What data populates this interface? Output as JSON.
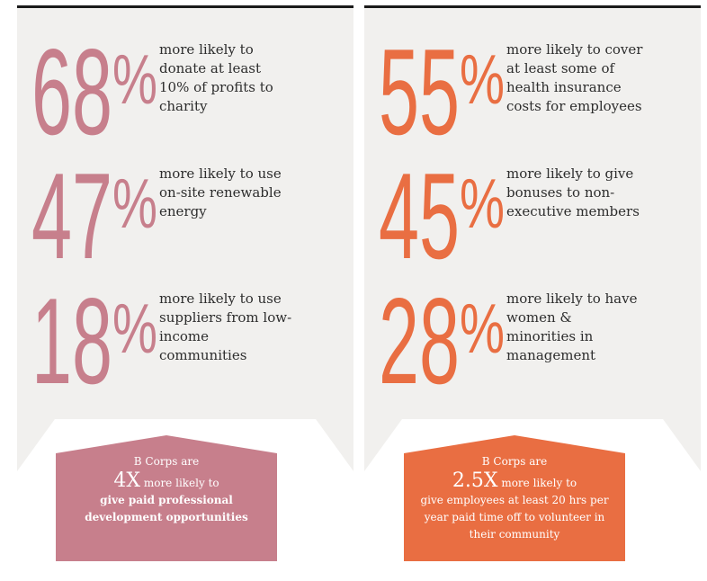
{
  "colors": {
    "left_accent": "#c77f8c",
    "right_accent": "#e96e42",
    "panel_bg": "#f1f0ee",
    "text": "#2d2d2d"
  },
  "left": {
    "stats": [
      {
        "number": "68",
        "percent": "%",
        "line1": "more likely to",
        "line2": "donate at least",
        "line3": "10% of profits to",
        "line4": "charity"
      },
      {
        "number": "47",
        "percent": "%",
        "line1": "more likely to use",
        "line2": "on-site renewable",
        "line3": "energy",
        "line4": ""
      },
      {
        "number": "18",
        "percent": "%",
        "line1": "more likely to use",
        "line2": "suppliers from low-",
        "line3": "income",
        "line4": "communities"
      }
    ],
    "banner": {
      "intro": "B Corps are",
      "multiplier": "4X",
      "multiplier_suffix": " more likely to",
      "line1": "give paid professional",
      "line2": "development opportunities",
      "line3": ""
    }
  },
  "right": {
    "stats": [
      {
        "number": "55",
        "percent": "%",
        "line1": "more likely to cover",
        "line2": "at least some of",
        "line3": "health insurance",
        "line4": "costs for employees"
      },
      {
        "number": "45",
        "percent": "%",
        "line1": "more likely to give",
        "line2": "bonuses to non-",
        "line3": "executive members",
        "line4": ""
      },
      {
        "number": "28",
        "percent": "%",
        "line1": "more likely to have",
        "line2": "women &",
        "line3": "minorities in",
        "line4": "management"
      }
    ],
    "banner": {
      "intro": "B Corps are",
      "multiplier": "2.5X",
      "multiplier_suffix": " more likely to",
      "line1": "give employees at least 20 hrs per",
      "line2": "year paid time off to volunteer in",
      "line3": "their community"
    }
  }
}
